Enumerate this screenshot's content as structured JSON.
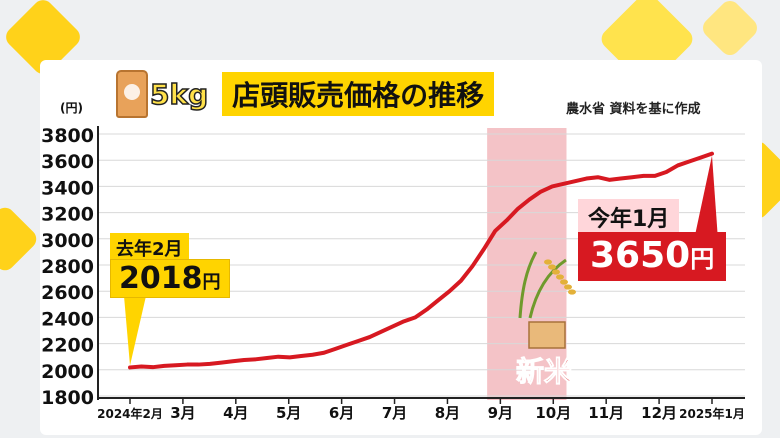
{
  "header": {
    "weight_label": "5kg",
    "title": "店頭販売価格の推移",
    "source": "農水省 資料を基に作成"
  },
  "chart_data": {
    "type": "line",
    "ylabel": "(円)",
    "ylim": [
      1800,
      3800
    ],
    "yticks": [
      1800,
      2000,
      2200,
      2400,
      2600,
      2800,
      3000,
      3200,
      3400,
      3600,
      3800
    ],
    "x_tick_labels": [
      "2024年2月",
      "3月",
      "4月",
      "5月",
      "6月",
      "7月",
      "8月",
      "9月",
      "10月",
      "11月",
      "12月",
      "2025年1月"
    ],
    "highlight_band": {
      "from": "9月",
      "to": "10月",
      "label": "新米"
    },
    "series": [
      {
        "color": "#d71921",
        "values": [
          2018,
          2025,
          2020,
          2030,
          2035,
          2040,
          2040,
          2045,
          2055,
          2065,
          2075,
          2080,
          2090,
          2100,
          2095,
          2105,
          2115,
          2130,
          2160,
          2190,
          2220,
          2250,
          2290,
          2330,
          2370,
          2400,
          2460,
          2530,
          2600,
          2680,
          2790,
          2920,
          3060,
          3140,
          3230,
          3300,
          3360,
          3400,
          3420,
          3440,
          3460,
          3470,
          3450,
          3460,
          3470,
          3480,
          3480,
          3510,
          3560,
          3590,
          3620,
          3650
        ]
      }
    ],
    "annotations": [
      {
        "label": "去年2月",
        "value": "2018",
        "unit": "円"
      },
      {
        "label": "今年1月",
        "value": "3650",
        "unit": "円"
      }
    ]
  },
  "colors": {
    "line": "#d71921",
    "highlight": "#f4c3c7",
    "title_bg": "#ffd400",
    "label_red": "#d71921"
  }
}
